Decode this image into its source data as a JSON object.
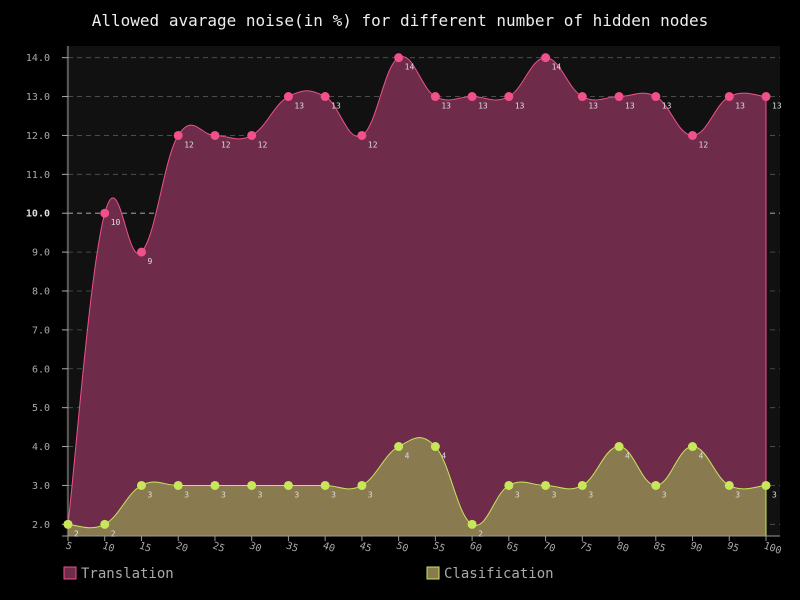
{
  "chart_data": {
    "type": "area",
    "title": "Allowed avarage noise(in %) for different number of hidden nodes",
    "xlabel": "",
    "ylabel": "",
    "categories": [
      "5",
      "10",
      "15",
      "20",
      "25",
      "30",
      "35",
      "40",
      "45",
      "50",
      "55",
      "60",
      "65",
      "70",
      "75",
      "80",
      "85",
      "90",
      "95",
      "100"
    ],
    "ylim": [
      1.7,
      14.3
    ],
    "yticks": [
      "2.0",
      "3.0",
      "4.0",
      "5.0",
      "6.0",
      "7.0",
      "8.0",
      "9.0",
      "10.0",
      "11.0",
      "12.0",
      "13.0",
      "14.0"
    ],
    "major_ytick": "10.0",
    "grid": true,
    "interpolation": "smooth",
    "legend_position": "bottom",
    "series": [
      {
        "name": "Translation",
        "color": "#f0508c",
        "fill": "#6e2c4a",
        "values": [
          2,
          10,
          9,
          12,
          12,
          12,
          13,
          13,
          12,
          14,
          13,
          13,
          13,
          14,
          13,
          13,
          13,
          12,
          13,
          13
        ]
      },
      {
        "name": "Clasification",
        "color": "#c8e65a",
        "fill": "#8a7a50",
        "values": [
          2,
          2,
          3,
          3,
          3,
          3,
          3,
          3,
          3,
          4,
          4,
          2,
          3,
          3,
          3,
          4,
          3,
          4,
          3,
          3
        ]
      }
    ]
  },
  "colors": {
    "background": "#000000",
    "plot_background": "#111111",
    "grid": "#555555",
    "text": "#eeeeee"
  }
}
